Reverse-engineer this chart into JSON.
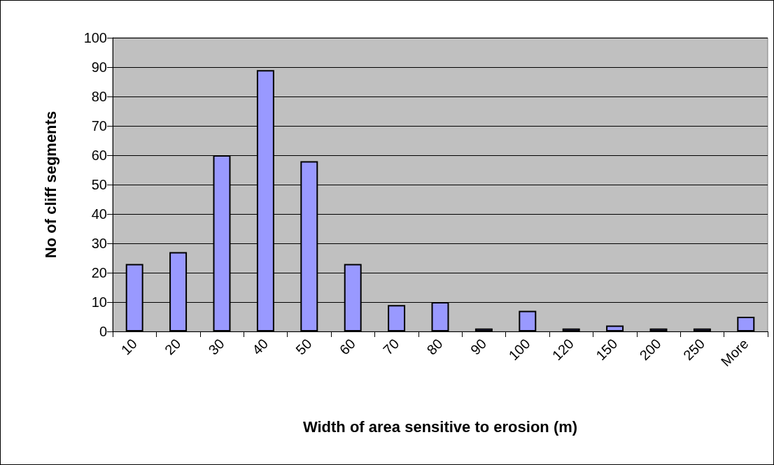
{
  "chart_data": {
    "type": "bar",
    "xlabel": "Width of area sensitive to erosion (m)",
    "ylabel": "No of cliff segments",
    "categories": [
      "10",
      "20",
      "30",
      "40",
      "50",
      "60",
      "70",
      "80",
      "90",
      "100",
      "120",
      "150",
      "200",
      "250",
      "More"
    ],
    "values": [
      23,
      27,
      60,
      89,
      58,
      23,
      9,
      10,
      1,
      7,
      1,
      2,
      1,
      1,
      5
    ],
    "color": "#9999ff",
    "ylim": [
      0,
      100
    ],
    "yticks": [
      0,
      10,
      20,
      30,
      40,
      50,
      60,
      70,
      80,
      90,
      100
    ],
    "grid": "y"
  }
}
